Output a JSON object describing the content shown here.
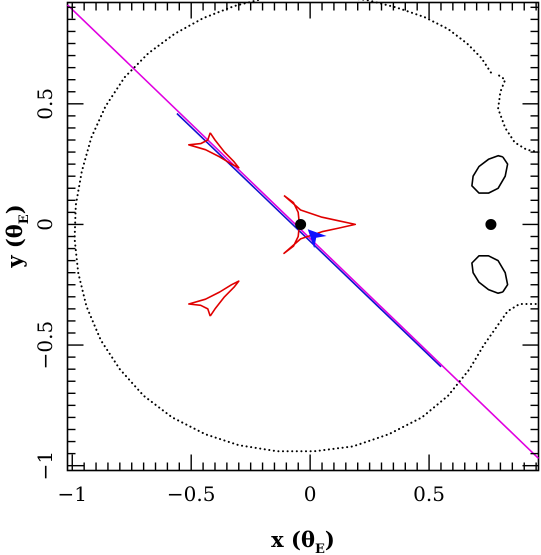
{
  "chart_data": {
    "type": "line",
    "xlim": [
      -1.02,
      0.96
    ],
    "ylim": [
      -1.02,
      0.92
    ],
    "grid": false,
    "legend": "none",
    "x_ticks": [
      {
        "value": -1.0,
        "label": "−1"
      },
      {
        "value": -0.5,
        "label": "−0.5"
      },
      {
        "value": 0.0,
        "label": "0"
      },
      {
        "value": 0.5,
        "label": "0.5"
      }
    ],
    "y_ticks": [
      {
        "value": -1.0,
        "label": "−1"
      },
      {
        "value": -0.5,
        "label": "−0.5"
      },
      {
        "value": 0.0,
        "label": "0"
      },
      {
        "value": 0.5,
        "label": "0.5"
      }
    ],
    "xlabel": {
      "main": "x (θ",
      "sub": "E",
      "close": ")"
    },
    "ylabel": {
      "main": "y (θ",
      "sub": "E",
      "close": ")"
    },
    "series": [
      {
        "style": "solid",
        "color": "#e000e0",
        "points": [
          [
            -1.02,
            0.91
          ],
          [
            0.96,
            -0.97
          ]
        ]
      },
      {
        "style": "solid",
        "color": "#1010d0",
        "points": [
          [
            -0.56,
            0.46
          ],
          [
            0.55,
            -0.59
          ]
        ]
      },
      {
        "style": "dotted",
        "color": "#000000",
        "points": [
          [
            0.76,
            0.63
          ],
          [
            0.72,
            0.69
          ],
          [
            0.66,
            0.75
          ],
          [
            0.58,
            0.81
          ],
          [
            0.48,
            0.86
          ],
          [
            0.36,
            0.9
          ],
          [
            0.24,
            0.93
          ],
          [
            0.1,
            0.945
          ],
          [
            -0.04,
            0.95
          ],
          [
            -0.18,
            0.94
          ],
          [
            -0.32,
            0.905
          ],
          [
            -0.45,
            0.855
          ],
          [
            -0.57,
            0.79
          ],
          [
            -0.68,
            0.71
          ],
          [
            -0.78,
            0.61
          ],
          [
            -0.86,
            0.49
          ],
          [
            -0.92,
            0.36
          ],
          [
            -0.96,
            0.22
          ],
          [
            -0.985,
            0.08
          ],
          [
            -0.99,
            -0.06
          ],
          [
            -0.975,
            -0.2
          ],
          [
            -0.94,
            -0.34
          ],
          [
            -0.88,
            -0.48
          ],
          [
            -0.8,
            -0.6
          ],
          [
            -0.7,
            -0.71
          ],
          [
            -0.58,
            -0.8
          ],
          [
            -0.44,
            -0.87
          ],
          [
            -0.3,
            -0.915
          ],
          [
            -0.14,
            -0.94
          ],
          [
            0.02,
            -0.94
          ],
          [
            0.18,
            -0.92
          ],
          [
            0.33,
            -0.87
          ],
          [
            0.47,
            -0.8
          ],
          [
            0.58,
            -0.71
          ],
          [
            0.67,
            -0.6
          ],
          [
            0.73,
            -0.5
          ],
          [
            0.78,
            -0.43
          ],
          [
            0.83,
            -0.36
          ],
          [
            0.88,
            -0.33
          ],
          [
            0.93,
            -0.33
          ],
          [
            0.96,
            -0.33
          ]
        ]
      },
      {
        "style": "dotted",
        "color": "#000000",
        "points": [
          [
            0.96,
            0.3
          ],
          [
            0.91,
            0.31
          ],
          [
            0.86,
            0.34
          ],
          [
            0.82,
            0.4
          ],
          [
            0.79,
            0.48
          ],
          [
            0.8,
            0.55
          ],
          [
            0.82,
            0.6
          ],
          [
            0.79,
            0.62
          ]
        ]
      },
      {
        "style": "solid",
        "color": "#000000",
        "points": [
          [
            0.81,
            0.28
          ],
          [
            0.83,
            0.25
          ],
          [
            0.82,
            0.2
          ],
          [
            0.79,
            0.15
          ],
          [
            0.75,
            0.13
          ],
          [
            0.71,
            0.13
          ],
          [
            0.68,
            0.16
          ],
          [
            0.685,
            0.2
          ],
          [
            0.71,
            0.24
          ],
          [
            0.75,
            0.27
          ],
          [
            0.79,
            0.285
          ],
          [
            0.81,
            0.28
          ]
        ]
      },
      {
        "style": "solid",
        "color": "#000000",
        "points": [
          [
            0.81,
            -0.28
          ],
          [
            0.83,
            -0.25
          ],
          [
            0.82,
            -0.2
          ],
          [
            0.79,
            -0.15
          ],
          [
            0.75,
            -0.13
          ],
          [
            0.71,
            -0.13
          ],
          [
            0.68,
            -0.16
          ],
          [
            0.685,
            -0.2
          ],
          [
            0.71,
            -0.24
          ],
          [
            0.75,
            -0.27
          ],
          [
            0.79,
            -0.285
          ],
          [
            0.81,
            -0.28
          ]
        ]
      },
      {
        "style": "solid",
        "color": "#e00000",
        "points": [
          [
            -0.42,
            0.38
          ],
          [
            -0.4,
            0.35
          ],
          [
            -0.36,
            0.3
          ],
          [
            -0.32,
            0.26
          ],
          [
            -0.3,
            0.235
          ],
          [
            -0.33,
            0.25
          ],
          [
            -0.38,
            0.28
          ],
          [
            -0.44,
            0.31
          ],
          [
            -0.51,
            0.33
          ],
          [
            -0.46,
            0.335
          ],
          [
            -0.43,
            0.35
          ],
          [
            -0.42,
            0.38
          ]
        ]
      },
      {
        "style": "solid",
        "color": "#e00000",
        "points": [
          [
            -0.42,
            -0.38
          ],
          [
            -0.4,
            -0.35
          ],
          [
            -0.36,
            -0.3
          ],
          [
            -0.32,
            -0.26
          ],
          [
            -0.3,
            -0.235
          ],
          [
            -0.33,
            -0.25
          ],
          [
            -0.38,
            -0.28
          ],
          [
            -0.44,
            -0.31
          ],
          [
            -0.51,
            -0.33
          ],
          [
            -0.46,
            -0.335
          ],
          [
            -0.43,
            -0.35
          ],
          [
            -0.42,
            -0.38
          ]
        ]
      },
      {
        "style": "solid",
        "color": "#e00000",
        "points": [
          [
            -0.11,
            0.12
          ],
          [
            -0.07,
            0.09
          ],
          [
            -0.05,
            0.05
          ],
          [
            -0.045,
            0.0
          ],
          [
            -0.05,
            -0.05
          ],
          [
            -0.07,
            -0.09
          ],
          [
            -0.11,
            -0.12
          ],
          [
            -0.04,
            -0.06
          ],
          [
            0.05,
            -0.03
          ],
          [
            0.12,
            -0.015
          ],
          [
            0.19,
            0.0
          ],
          [
            0.12,
            0.015
          ],
          [
            0.05,
            0.03
          ],
          [
            -0.04,
            0.06
          ],
          [
            -0.11,
            0.12
          ]
        ]
      },
      {
        "style": "dot",
        "color": "#000000",
        "points": [
          [
            -0.04,
            0.0
          ],
          [
            0.76,
            0.0
          ]
        ]
      }
    ],
    "annotations": [
      {
        "type": "arrow",
        "color": "#1010ff",
        "from": [
          0.04,
          -0.07
        ],
        "to": [
          -0.01,
          -0.02
        ]
      }
    ]
  }
}
